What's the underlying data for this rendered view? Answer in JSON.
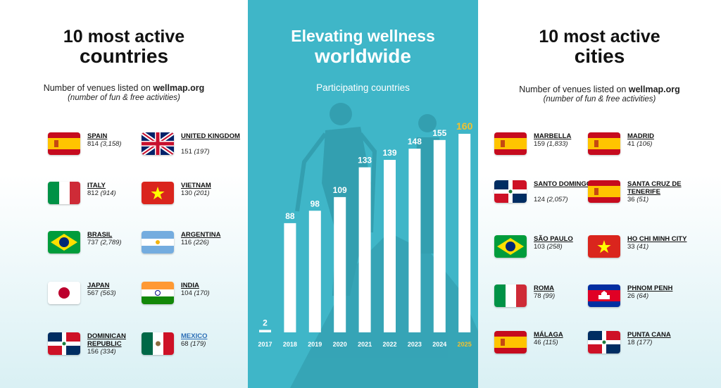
{
  "left": {
    "title_line1": "10 most active",
    "title_line2": "countries",
    "subtitle_prefix": "Number of venues listed on ",
    "subtitle_site": "wellmap.org",
    "subtitle_note": "(number of fun & free activities)",
    "items": [
      {
        "name": "SPAIN",
        "venues": "814",
        "activities": "(3,158)",
        "flag": "spain"
      },
      {
        "name": "UNITED KINGDOM",
        "venues": "151",
        "activities": "(197)",
        "flag": "uk"
      },
      {
        "name": "ITALY",
        "venues": "812",
        "activities": "(914)",
        "flag": "italy"
      },
      {
        "name": "VIETNAM",
        "venues": "130",
        "activities": "(201)",
        "flag": "vietnam"
      },
      {
        "name": "BRASIL",
        "venues": "737",
        "activities": "(2,789)",
        "flag": "brazil"
      },
      {
        "name": "ARGENTINA",
        "venues": "116",
        "activities": "(226)",
        "flag": "argentina"
      },
      {
        "name": "JAPAN",
        "venues": "567",
        "activities": "(563)",
        "flag": "japan"
      },
      {
        "name": "INDIA",
        "venues": "104",
        "activities": "(170)",
        "flag": "india"
      },
      {
        "name": "DOMINICAN REPUBLIC",
        "venues": "156",
        "activities": "(334)",
        "flag": "dominican"
      },
      {
        "name": "MEXICO",
        "venues": "68",
        "activities": "(179)",
        "flag": "mexico"
      }
    ]
  },
  "middle": {
    "title_line1": "Elevating wellness",
    "title_line2": "worldwide",
    "subtitle": "Participating countries",
    "bar_color": "#ffffff",
    "highlight_color": "#f2c12e"
  },
  "right": {
    "title_line1": "10 most active",
    "title_line2": "cities",
    "subtitle_prefix": "Number of venues listed on ",
    "subtitle_site": "wellmap.org",
    "subtitle_note": "(number of fun & free activities)",
    "items": [
      {
        "name": "MARBELLA",
        "venues": "159",
        "activities": "(1,833)",
        "flag": "spain"
      },
      {
        "name": "MADRID",
        "venues": "41",
        "activities": "(106)",
        "flag": "spain"
      },
      {
        "name": "SANTO DOMINGO",
        "venues": "124",
        "activities": "(2,057)",
        "flag": "dominican"
      },
      {
        "name": "SANTA CRUZ DE TENERIFE",
        "venues": "36",
        "activities": "(51)",
        "flag": "spain"
      },
      {
        "name": "SÃO PAULO",
        "venues": "103",
        "activities": "(258)",
        "flag": "brazil"
      },
      {
        "name": "HO CHI MINH CITY",
        "venues": "33",
        "activities": "(41)",
        "flag": "vietnam"
      },
      {
        "name": "ROMA",
        "venues": "78",
        "activities": "(99)",
        "flag": "italy"
      },
      {
        "name": "PHNOM PENH",
        "venues": "26",
        "activities": "(64)",
        "flag": "cambodia"
      },
      {
        "name": "MÁLAGA",
        "venues": "46",
        "activities": "(115)",
        "flag": "spain"
      },
      {
        "name": "PUNTA CANA",
        "venues": "18",
        "activities": "(177)",
        "flag": "dominican"
      }
    ]
  },
  "chart_data": {
    "type": "bar",
    "title": "Elevating wellness worldwide",
    "subtitle": "Participating countries",
    "categories": [
      "2017",
      "2018",
      "2019",
      "2020",
      "2021",
      "2022",
      "2023",
      "2024",
      "2025"
    ],
    "values": [
      2,
      88,
      98,
      109,
      133,
      139,
      148,
      155,
      160
    ],
    "highlight": "2025",
    "ylim": [
      0,
      160
    ],
    "grid": false,
    "legend": "none"
  }
}
